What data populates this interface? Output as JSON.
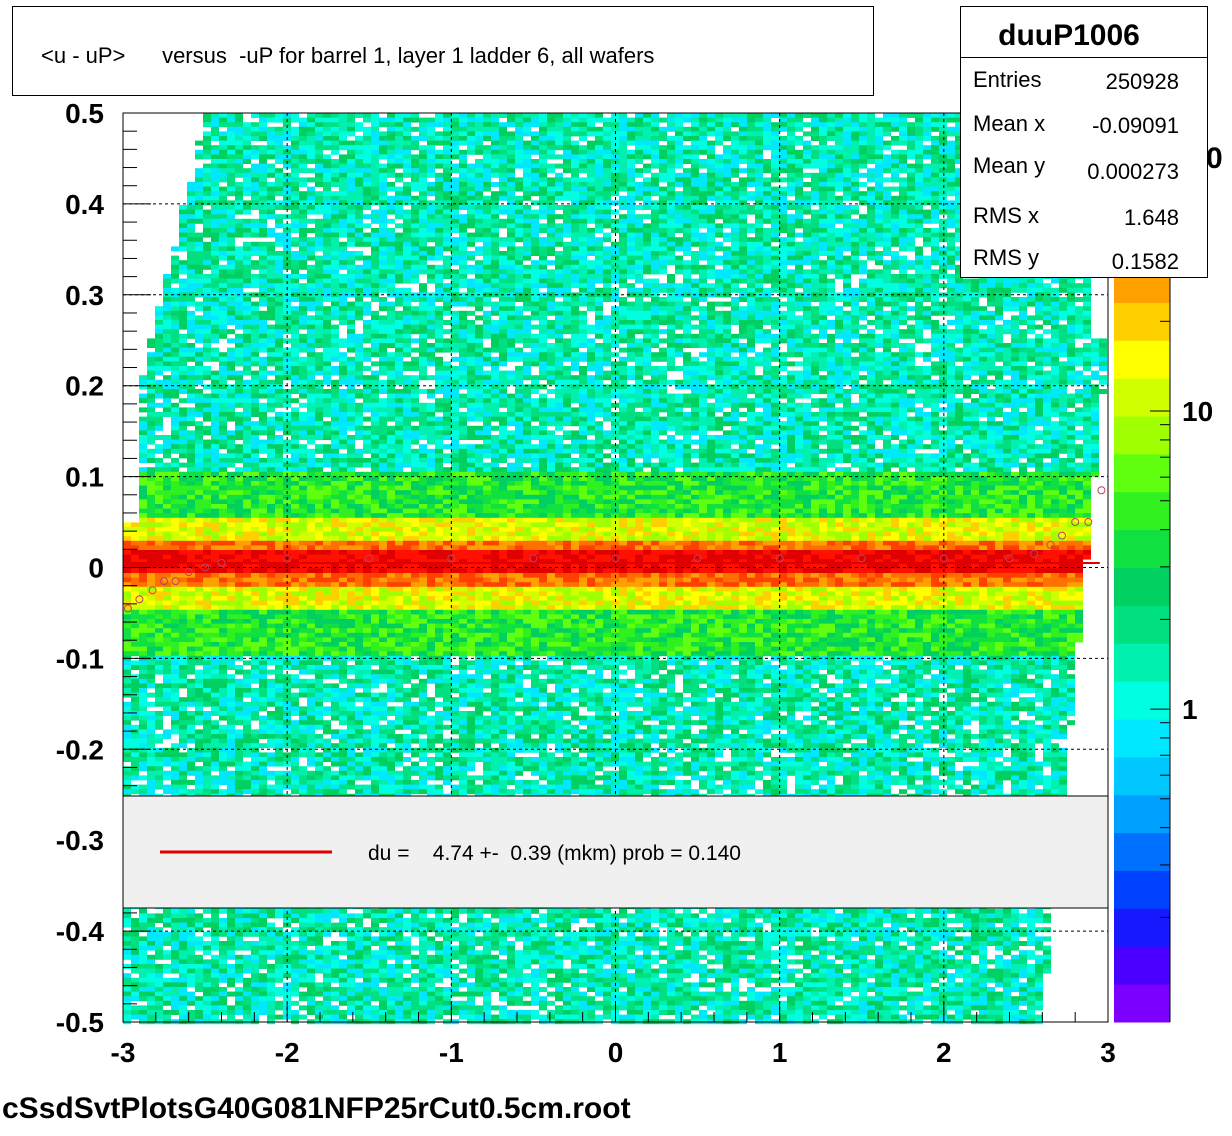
{
  "title": "<u - uP>      versus  -uP for barrel 1, layer 1 ladder 6, all wafers",
  "stats": {
    "name": "duuP1006",
    "rows": [
      {
        "label": "Entries",
        "value": "250928"
      },
      {
        "label": "Mean x",
        "value": "-0.09091"
      },
      {
        "label": "Mean y",
        "value": "0.000273"
      },
      {
        "label": "RMS x",
        "value": "1.648"
      },
      {
        "label": "RMS y",
        "value": "0.1582"
      }
    ]
  },
  "legend": {
    "text": "du =    4.74 +-  0.39 (mkm) prob = 0.140",
    "line_color": "#e00000"
  },
  "footer": "cSsdSvtPlotsG40G081NFP25rCut0.5cm.root",
  "chart_data": {
    "type": "heatmap",
    "title": "<u - uP>      versus  -uP for barrel 1, layer 1 ladder 6, all wafers",
    "xlim": [
      -3,
      3
    ],
    "ylim": [
      -0.5,
      0.5
    ],
    "x_ticks": [
      "-3",
      "-2",
      "-1",
      "0",
      "1",
      "2",
      "3"
    ],
    "y_ticks": [
      "-0.5",
      "-0.4",
      "-0.3",
      "-0.2",
      "-0.1",
      "0",
      "0.1",
      "0.2",
      "0.3",
      "0.4",
      "0.5"
    ],
    "colorbar_ticks": [
      "1",
      "10"
    ],
    "colorbar_partial_label": "0",
    "colorbar_scale": "log",
    "grid": true,
    "profile_points": {
      "x": [
        -2.97,
        -2.9,
        -2.82,
        -2.75,
        -2.68,
        -2.6,
        -2.5,
        -2.4,
        -2.0,
        -1.5,
        -1.0,
        -0.5,
        0.0,
        0.5,
        1.0,
        1.5,
        2.0,
        2.4,
        2.55,
        2.65,
        2.72,
        2.8,
        2.88,
        2.96
      ],
      "y": [
        -0.045,
        -0.035,
        -0.025,
        -0.015,
        -0.015,
        -0.005,
        0.0,
        0.005,
        0.01,
        0.01,
        0.01,
        0.01,
        0.01,
        0.01,
        0.01,
        0.01,
        0.01,
        0.01,
        0.015,
        0.025,
        0.035,
        0.05,
        0.05,
        0.085
      ]
    },
    "fit_y": 0.005,
    "fit_line_color": "#e00000",
    "palette": [
      "#7b00ff",
      "#4a00ff",
      "#1818ff",
      "#0040ff",
      "#0070ff",
      "#00a0ff",
      "#00c8ff",
      "#00e8ff",
      "#00ffe0",
      "#00f0b0",
      "#00e080",
      "#00d060",
      "#10e040",
      "#30f020",
      "#60ff10",
      "#a0ff00",
      "#d0ff00",
      "#ffff00",
      "#ffd000",
      "#ffa000",
      "#ff7000",
      "#ff4000",
      "#ff1000",
      "#e00000"
    ]
  }
}
